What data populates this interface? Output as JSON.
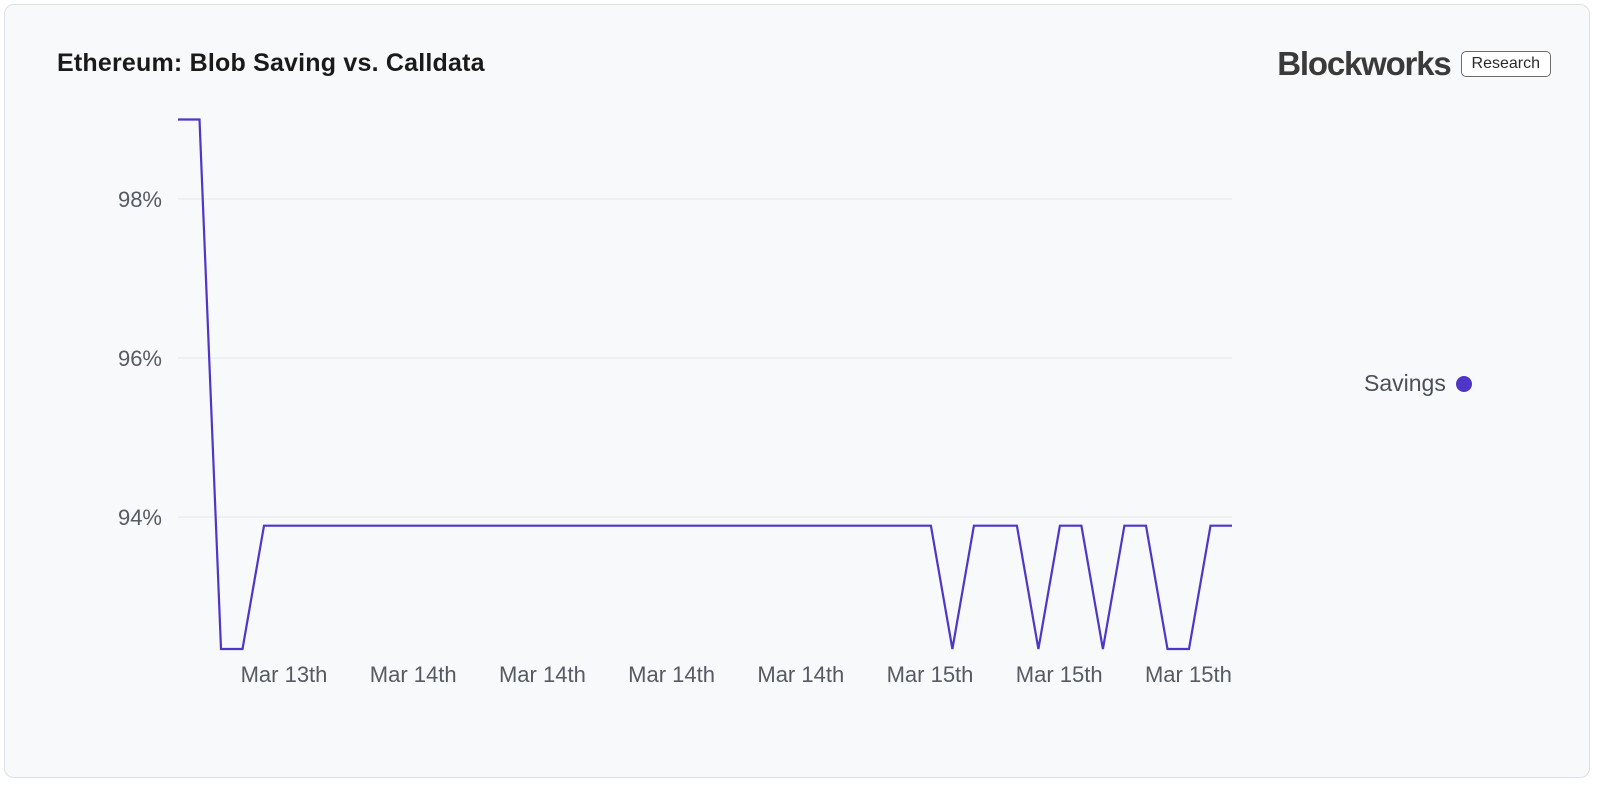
{
  "card": {
    "title": "Ethereum: Blob Saving vs. Calldata",
    "brand": "Blockworks",
    "badge": "Research"
  },
  "legend": [
    {
      "label": "Savings",
      "color": "#4f35c8"
    }
  ],
  "chart_data": {
    "type": "line",
    "title": "Ethereum: Blob Saving vs. Calldata",
    "xlabel": "",
    "ylabel": "",
    "ylim": [
      92.4,
      99.0
    ],
    "grid": true,
    "legend_position": "right",
    "y_ticks": [
      {
        "value": 98,
        "label": "98%"
      },
      {
        "value": 96,
        "label": "96%"
      },
      {
        "value": 94,
        "label": "94%"
      }
    ],
    "x_ticks": [
      "Mar 13th",
      "Mar 14th",
      "Mar 14th",
      "Mar 14th",
      "Mar 14th",
      "Mar 15th",
      "Mar 15th",
      "Mar 15th"
    ],
    "series": [
      {
        "name": "Savings",
        "color": "#4f35c8",
        "x": [
          0,
          1,
          2,
          3,
          4,
          5,
          6,
          7,
          8,
          9,
          10,
          11,
          12,
          13,
          14,
          15,
          16,
          17,
          18,
          19,
          20,
          21,
          22,
          23,
          24,
          25,
          26,
          27,
          28,
          29,
          30,
          31,
          32,
          33,
          34,
          35,
          36,
          37,
          38,
          39,
          40,
          41,
          42,
          43,
          44,
          45,
          46,
          47,
          48,
          49
        ],
        "values": [
          99.0,
          99.0,
          92.34,
          92.34,
          93.89,
          93.89,
          93.89,
          93.89,
          93.89,
          93.89,
          93.89,
          93.89,
          93.89,
          93.89,
          93.89,
          93.89,
          93.89,
          93.89,
          93.89,
          93.89,
          93.89,
          93.89,
          93.89,
          93.89,
          93.89,
          93.89,
          93.89,
          93.89,
          93.89,
          93.89,
          93.89,
          93.89,
          93.89,
          93.89,
          93.89,
          93.89,
          92.34,
          93.89,
          93.89,
          93.89,
          92.34,
          93.89,
          93.89,
          92.34,
          93.89,
          93.89,
          92.34,
          92.34,
          93.89,
          93.89
        ]
      }
    ]
  }
}
